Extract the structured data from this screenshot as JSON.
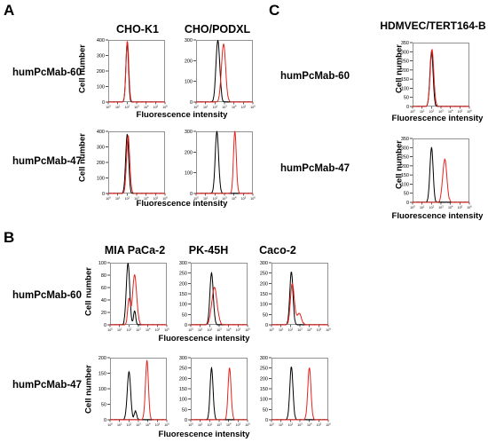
{
  "labels": {
    "panel_a": "A",
    "panel_b": "B",
    "panel_c": "C",
    "x_axis": "Fluorescence intensity",
    "y_axis": "Cell number"
  },
  "panel_a": {
    "columns": [
      "CHO-K1",
      "CHO/PODXL"
    ],
    "rows": [
      "humPcMab-60",
      "humPcMab-47"
    ]
  },
  "panel_b": {
    "columns": [
      "MIA PaCa-2",
      "PK-45H",
      "Caco-2"
    ],
    "rows": [
      "humPcMab-60",
      "humPcMab-47"
    ]
  },
  "panel_c": {
    "columns": [
      "HDMVEC/TERT164-B"
    ],
    "rows": [
      "humPcMab-60",
      "humPcMab-47"
    ]
  },
  "colors": {
    "control": "#000000",
    "antibody": "#e8231e"
  },
  "chart_data": [
    {
      "panel": "A",
      "cell_line": "CHO-K1",
      "antibody": "humPcMab-60",
      "type": "line",
      "xscale": "log",
      "xlim": [
        1,
        1000000
      ],
      "ylim": [
        0,
        400
      ],
      "yticks": [
        0,
        100,
        200,
        300,
        400
      ],
      "series": [
        {
          "color": "#000000",
          "peaks": [
            [
              2.0,
              380,
              0.14
            ]
          ]
        },
        {
          "color": "#e8231e",
          "peaks": [
            [
              2.02,
              390,
              0.15
            ]
          ]
        }
      ]
    },
    {
      "panel": "A",
      "cell_line": "CHO/PODXL",
      "antibody": "humPcMab-60",
      "type": "line",
      "xscale": "log",
      "xlim": [
        1,
        1000000
      ],
      "ylim": [
        0,
        300
      ],
      "yticks": [
        0,
        100,
        200,
        300
      ],
      "series": [
        {
          "color": "#000000",
          "peaks": [
            [
              2.3,
              300,
              0.2
            ]
          ]
        },
        {
          "color": "#e8231e",
          "peaks": [
            [
              2.9,
              280,
              0.22
            ]
          ]
        }
      ]
    },
    {
      "panel": "A",
      "cell_line": "CHO-K1",
      "antibody": "humPcMab-47",
      "type": "line",
      "xscale": "log",
      "xlim": [
        1,
        1000000
      ],
      "ylim": [
        0,
        400
      ],
      "yticks": [
        0,
        100,
        200,
        300,
        400
      ],
      "series": [
        {
          "color": "#000000",
          "peaks": [
            [
              2.0,
              380,
              0.16
            ]
          ]
        },
        {
          "color": "#e8231e",
          "peaks": [
            [
              2.1,
              370,
              0.17
            ]
          ]
        }
      ]
    },
    {
      "panel": "A",
      "cell_line": "CHO/PODXL",
      "antibody": "humPcMab-47",
      "type": "line",
      "xscale": "log",
      "xlim": [
        1,
        1000000
      ],
      "ylim": [
        0,
        300
      ],
      "yticks": [
        0,
        100,
        200,
        300
      ],
      "series": [
        {
          "color": "#000000",
          "peaks": [
            [
              2.2,
              300,
              0.18
            ]
          ]
        },
        {
          "color": "#e8231e",
          "peaks": [
            [
              4.1,
              300,
              0.15
            ]
          ]
        }
      ]
    },
    {
      "panel": "B",
      "cell_line": "MIA PaCa-2",
      "antibody": "humPcMab-60",
      "type": "line",
      "xscale": "log",
      "xlim": [
        1,
        1000000
      ],
      "ylim": [
        0,
        100
      ],
      "yticks": [
        0,
        20,
        40,
        60,
        80,
        100
      ],
      "series": [
        {
          "color": "#000000",
          "peaks": [
            [
              1.9,
              100,
              0.18
            ],
            [
              2.6,
              22,
              0.12
            ]
          ]
        },
        {
          "color": "#e8231e",
          "peaks": [
            [
              2.6,
              80,
              0.22
            ],
            [
              2.0,
              40,
              0.14
            ]
          ]
        }
      ]
    },
    {
      "panel": "B",
      "cell_line": "PK-45H",
      "antibody": "humPcMab-60",
      "type": "line",
      "xscale": "log",
      "xlim": [
        1,
        1000000
      ],
      "ylim": [
        0,
        300
      ],
      "yticks": [
        0,
        50,
        100,
        150,
        200,
        250,
        300
      ],
      "series": [
        {
          "color": "#000000",
          "peaks": [
            [
              2.2,
              250,
              0.18
            ]
          ]
        },
        {
          "color": "#e8231e",
          "peaks": [
            [
              2.5,
              180,
              0.28
            ]
          ]
        }
      ]
    },
    {
      "panel": "B",
      "cell_line": "Caco-2",
      "antibody": "humPcMab-60",
      "type": "line",
      "xscale": "log",
      "xlim": [
        1,
        1000000
      ],
      "ylim": [
        0,
        300
      ],
      "yticks": [
        0,
        50,
        100,
        150,
        200,
        250,
        300
      ],
      "series": [
        {
          "color": "#000000",
          "peaks": [
            [
              2.1,
              255,
              0.17
            ]
          ]
        },
        {
          "color": "#e8231e",
          "peaks": [
            [
              2.2,
              200,
              0.2
            ],
            [
              2.9,
              55,
              0.25
            ]
          ]
        }
      ]
    },
    {
      "panel": "B",
      "cell_line": "MIA PaCa-2",
      "antibody": "humPcMab-47",
      "type": "line",
      "xscale": "log",
      "xlim": [
        1,
        1000000
      ],
      "ylim": [
        0,
        200
      ],
      "yticks": [
        0,
        50,
        100,
        150,
        200
      ],
      "series": [
        {
          "color": "#000000",
          "peaks": [
            [
              2.0,
              155,
              0.18
            ],
            [
              2.7,
              28,
              0.13
            ]
          ]
        },
        {
          "color": "#e8231e",
          "peaks": [
            [
              3.9,
              190,
              0.16
            ]
          ]
        }
      ]
    },
    {
      "panel": "B",
      "cell_line": "PK-45H",
      "antibody": "humPcMab-47",
      "type": "line",
      "xscale": "log",
      "xlim": [
        1,
        1000000
      ],
      "ylim": [
        0,
        300
      ],
      "yticks": [
        0,
        50,
        100,
        150,
        200,
        250,
        300
      ],
      "series": [
        {
          "color": "#000000",
          "peaks": [
            [
              2.2,
              250,
              0.16
            ]
          ]
        },
        {
          "color": "#e8231e",
          "peaks": [
            [
              4.1,
              250,
              0.16
            ]
          ]
        }
      ]
    },
    {
      "panel": "B",
      "cell_line": "Caco-2",
      "antibody": "humPcMab-47",
      "type": "line",
      "xscale": "log",
      "xlim": [
        1,
        1000000
      ],
      "ylim": [
        0,
        300
      ],
      "yticks": [
        0,
        50,
        100,
        150,
        200,
        250,
        300
      ],
      "series": [
        {
          "color": "#000000",
          "peaks": [
            [
              2.1,
              255,
              0.17
            ]
          ]
        },
        {
          "color": "#e8231e",
          "peaks": [
            [
              4.0,
              250,
              0.17
            ]
          ]
        }
      ]
    },
    {
      "panel": "C",
      "cell_line": "HDMVEC/TERT164-B",
      "antibody": "humPcMab-60",
      "type": "line",
      "xscale": "log",
      "xlim": [
        1,
        1000000
      ],
      "ylim": [
        0,
        350
      ],
      "yticks": [
        0,
        50,
        100,
        150,
        200,
        250,
        300,
        350
      ],
      "series": [
        {
          "color": "#000000",
          "peaks": [
            [
              2.0,
              300,
              0.17
            ]
          ]
        },
        {
          "color": "#e8231e",
          "peaks": [
            [
              2.05,
              310,
              0.19
            ]
          ]
        }
      ]
    },
    {
      "panel": "C",
      "cell_line": "HDMVEC/TERT164-B",
      "antibody": "humPcMab-47",
      "type": "line",
      "xscale": "log",
      "xlim": [
        1,
        1000000
      ],
      "ylim": [
        0,
        350
      ],
      "yticks": [
        0,
        50,
        100,
        150,
        200,
        250,
        300,
        350
      ],
      "series": [
        {
          "color": "#000000",
          "peaks": [
            [
              2.0,
              300,
              0.17
            ]
          ]
        },
        {
          "color": "#e8231e",
          "peaks": [
            [
              3.4,
              235,
              0.22
            ]
          ]
        }
      ]
    }
  ]
}
